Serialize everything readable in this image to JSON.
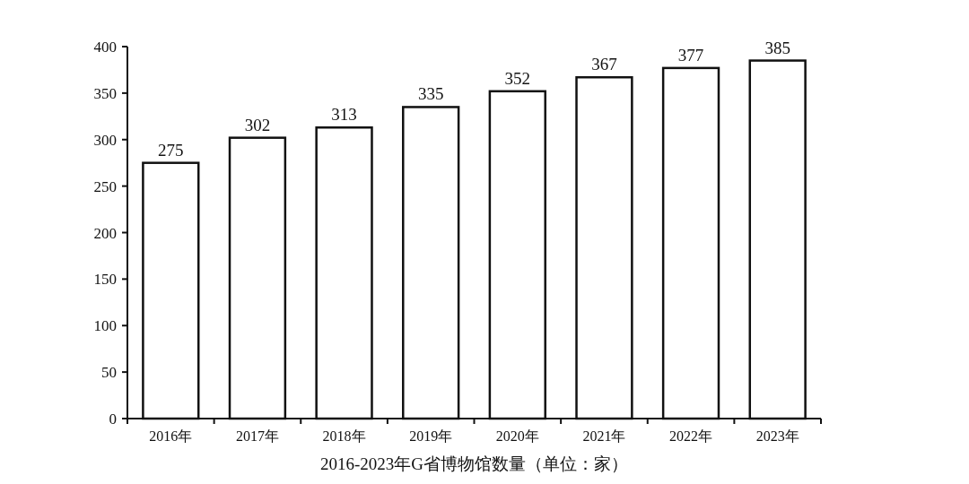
{
  "chart_data": {
    "type": "bar",
    "xlabel": "2016-2023年G省博物馆数量（单位：家）",
    "categories": [
      "2016年",
      "2017年",
      "2018年",
      "2019年",
      "2020年",
      "2021年",
      "2022年",
      "2023年"
    ],
    "values": [
      275,
      302,
      313,
      335,
      352,
      367,
      377,
      385
    ],
    "color": "#ffffff",
    "ylim": [
      0,
      400
    ],
    "yticks": [
      0,
      50,
      100,
      150,
      200,
      250,
      300,
      350,
      400
    ],
    "data_labels": true
  }
}
